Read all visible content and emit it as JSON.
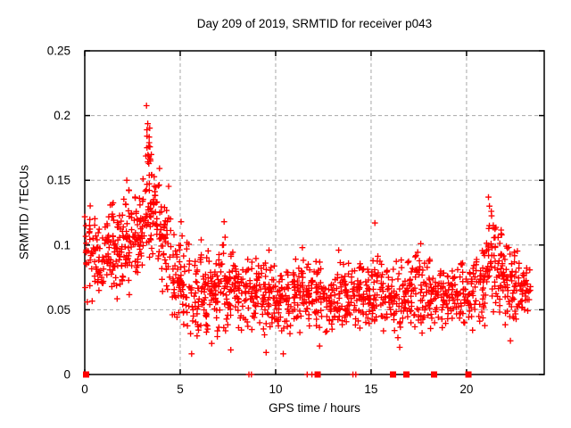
{
  "chart_data": {
    "type": "scatter",
    "title": "Day 209 of 2019, SRMTID for receiver p043",
    "xlabel": "GPS time / hours",
    "ylabel": "SRMTID / TECUs",
    "xlim": [
      0,
      24.07
    ],
    "ylim": [
      0,
      0.25
    ],
    "xticks": [
      0,
      5,
      10,
      15,
      20
    ],
    "xtick_labels": [
      "0",
      "5",
      "10",
      "15",
      "20"
    ],
    "yticks": [
      0,
      0.05,
      0.1,
      0.15,
      0.2,
      0.25
    ],
    "ytick_labels": [
      "0",
      "0.05",
      "0.1",
      "0.15",
      "0.2",
      "0.25"
    ],
    "grid": {
      "show": true,
      "x_at": [
        5,
        10,
        15,
        20
      ],
      "y_at": [
        0.05,
        0.1,
        0.15,
        0.2
      ],
      "color": "#a8a8a8",
      "dash": [
        4,
        3
      ]
    },
    "legend": "none",
    "marker": {
      "shape": "plus",
      "color": "#ff0000",
      "size": 7
    },
    "summary": "Dense SRMTID scatter: band 0.05-0.15 TECUs during hours 0-5 peaking ~0.21 near hour 3.3, settling to 0.03-0.09 from hours 5-21 with brief spikes ~0.1-0.12, secondary bump to ~0.13 near hour 21.2, data ends ~hour 23.4; isolated points plotted at exactly 0 TECUs.",
    "point_bands": [
      [
        0.0,
        30,
        0.05,
        0.145
      ],
      [
        0.5,
        36,
        0.055,
        0.128
      ],
      [
        1.0,
        40,
        0.058,
        0.14
      ],
      [
        1.5,
        40,
        0.055,
        0.135
      ],
      [
        2.0,
        42,
        0.06,
        0.148
      ],
      [
        2.5,
        42,
        0.065,
        0.145
      ],
      [
        3.0,
        34,
        0.08,
        0.155
      ],
      [
        3.2,
        26,
        0.12,
        0.212,
        0.3
      ],
      [
        3.5,
        38,
        0.08,
        0.168
      ],
      [
        4.0,
        40,
        0.058,
        0.148
      ],
      [
        4.5,
        36,
        0.04,
        0.118
      ],
      [
        5.0,
        34,
        0.03,
        0.112
      ],
      [
        5.5,
        32,
        0.022,
        0.092
      ],
      [
        6.0,
        36,
        0.028,
        0.1
      ],
      [
        6.5,
        36,
        0.026,
        0.094
      ],
      [
        7.0,
        36,
        0.03,
        0.11
      ],
      [
        7.5,
        34,
        0.03,
        0.098
      ],
      [
        8.0,
        34,
        0.028,
        0.09
      ],
      [
        8.5,
        34,
        0.028,
        0.092
      ],
      [
        9.0,
        34,
        0.026,
        0.094
      ],
      [
        9.5,
        34,
        0.03,
        0.094
      ],
      [
        10.0,
        34,
        0.03,
        0.086
      ],
      [
        10.5,
        34,
        0.028,
        0.09
      ],
      [
        11.0,
        34,
        0.03,
        0.096
      ],
      [
        11.5,
        34,
        0.03,
        0.09
      ],
      [
        12.0,
        34,
        0.03,
        0.092
      ],
      [
        12.5,
        34,
        0.028,
        0.088
      ],
      [
        13.0,
        34,
        0.03,
        0.094
      ],
      [
        13.5,
        34,
        0.03,
        0.09
      ],
      [
        14.0,
        34,
        0.03,
        0.094
      ],
      [
        14.5,
        32,
        0.03,
        0.088
      ],
      [
        15.0,
        32,
        0.028,
        0.1
      ],
      [
        15.5,
        32,
        0.03,
        0.09
      ],
      [
        16.0,
        32,
        0.026,
        0.094
      ],
      [
        16.5,
        32,
        0.028,
        0.092
      ],
      [
        17.0,
        32,
        0.03,
        0.098
      ],
      [
        17.5,
        32,
        0.03,
        0.094
      ],
      [
        18.0,
        32,
        0.028,
        0.092
      ],
      [
        18.5,
        32,
        0.03,
        0.09
      ],
      [
        19.0,
        32,
        0.03,
        0.094
      ],
      [
        19.5,
        32,
        0.03,
        0.092
      ],
      [
        20.0,
        32,
        0.032,
        0.09
      ],
      [
        20.5,
        34,
        0.035,
        0.1
      ],
      [
        21.0,
        38,
        0.04,
        0.132
      ],
      [
        21.5,
        38,
        0.04,
        0.122
      ],
      [
        22.0,
        38,
        0.035,
        0.104
      ],
      [
        22.5,
        36,
        0.04,
        0.1
      ],
      [
        23.0,
        22,
        0.04,
        0.095,
        0.35
      ]
    ],
    "outliers": [
      [
        2.2,
        0.15
      ],
      [
        3.05,
        0.151
      ],
      [
        5.05,
        0.118
      ],
      [
        5.1,
        0.107
      ],
      [
        6.1,
        0.104
      ],
      [
        7.3,
        0.118
      ],
      [
        7.35,
        0.106
      ],
      [
        9.65,
        0.096
      ],
      [
        11.4,
        0.098
      ],
      [
        13.3,
        0.096
      ],
      [
        15.2,
        0.117
      ],
      [
        17.6,
        0.101
      ],
      [
        21.15,
        0.137
      ],
      [
        21.2,
        0.13
      ],
      [
        21.3,
        0.126
      ],
      [
        5.6,
        0.016
      ],
      [
        6.65,
        0.024
      ],
      [
        7.65,
        0.019
      ],
      [
        9.5,
        0.017
      ],
      [
        10.4,
        0.016
      ],
      [
        12.3,
        0.022
      ],
      [
        16.5,
        0.021
      ],
      [
        22.3,
        0.026
      ]
    ],
    "zero_markers": {
      "squares": [
        0.07,
        12.2,
        16.15,
        16.85,
        18.3,
        20.1
      ],
      "plus": [
        8.6,
        8.73,
        11.65,
        11.9,
        14.05,
        14.2
      ]
    }
  }
}
